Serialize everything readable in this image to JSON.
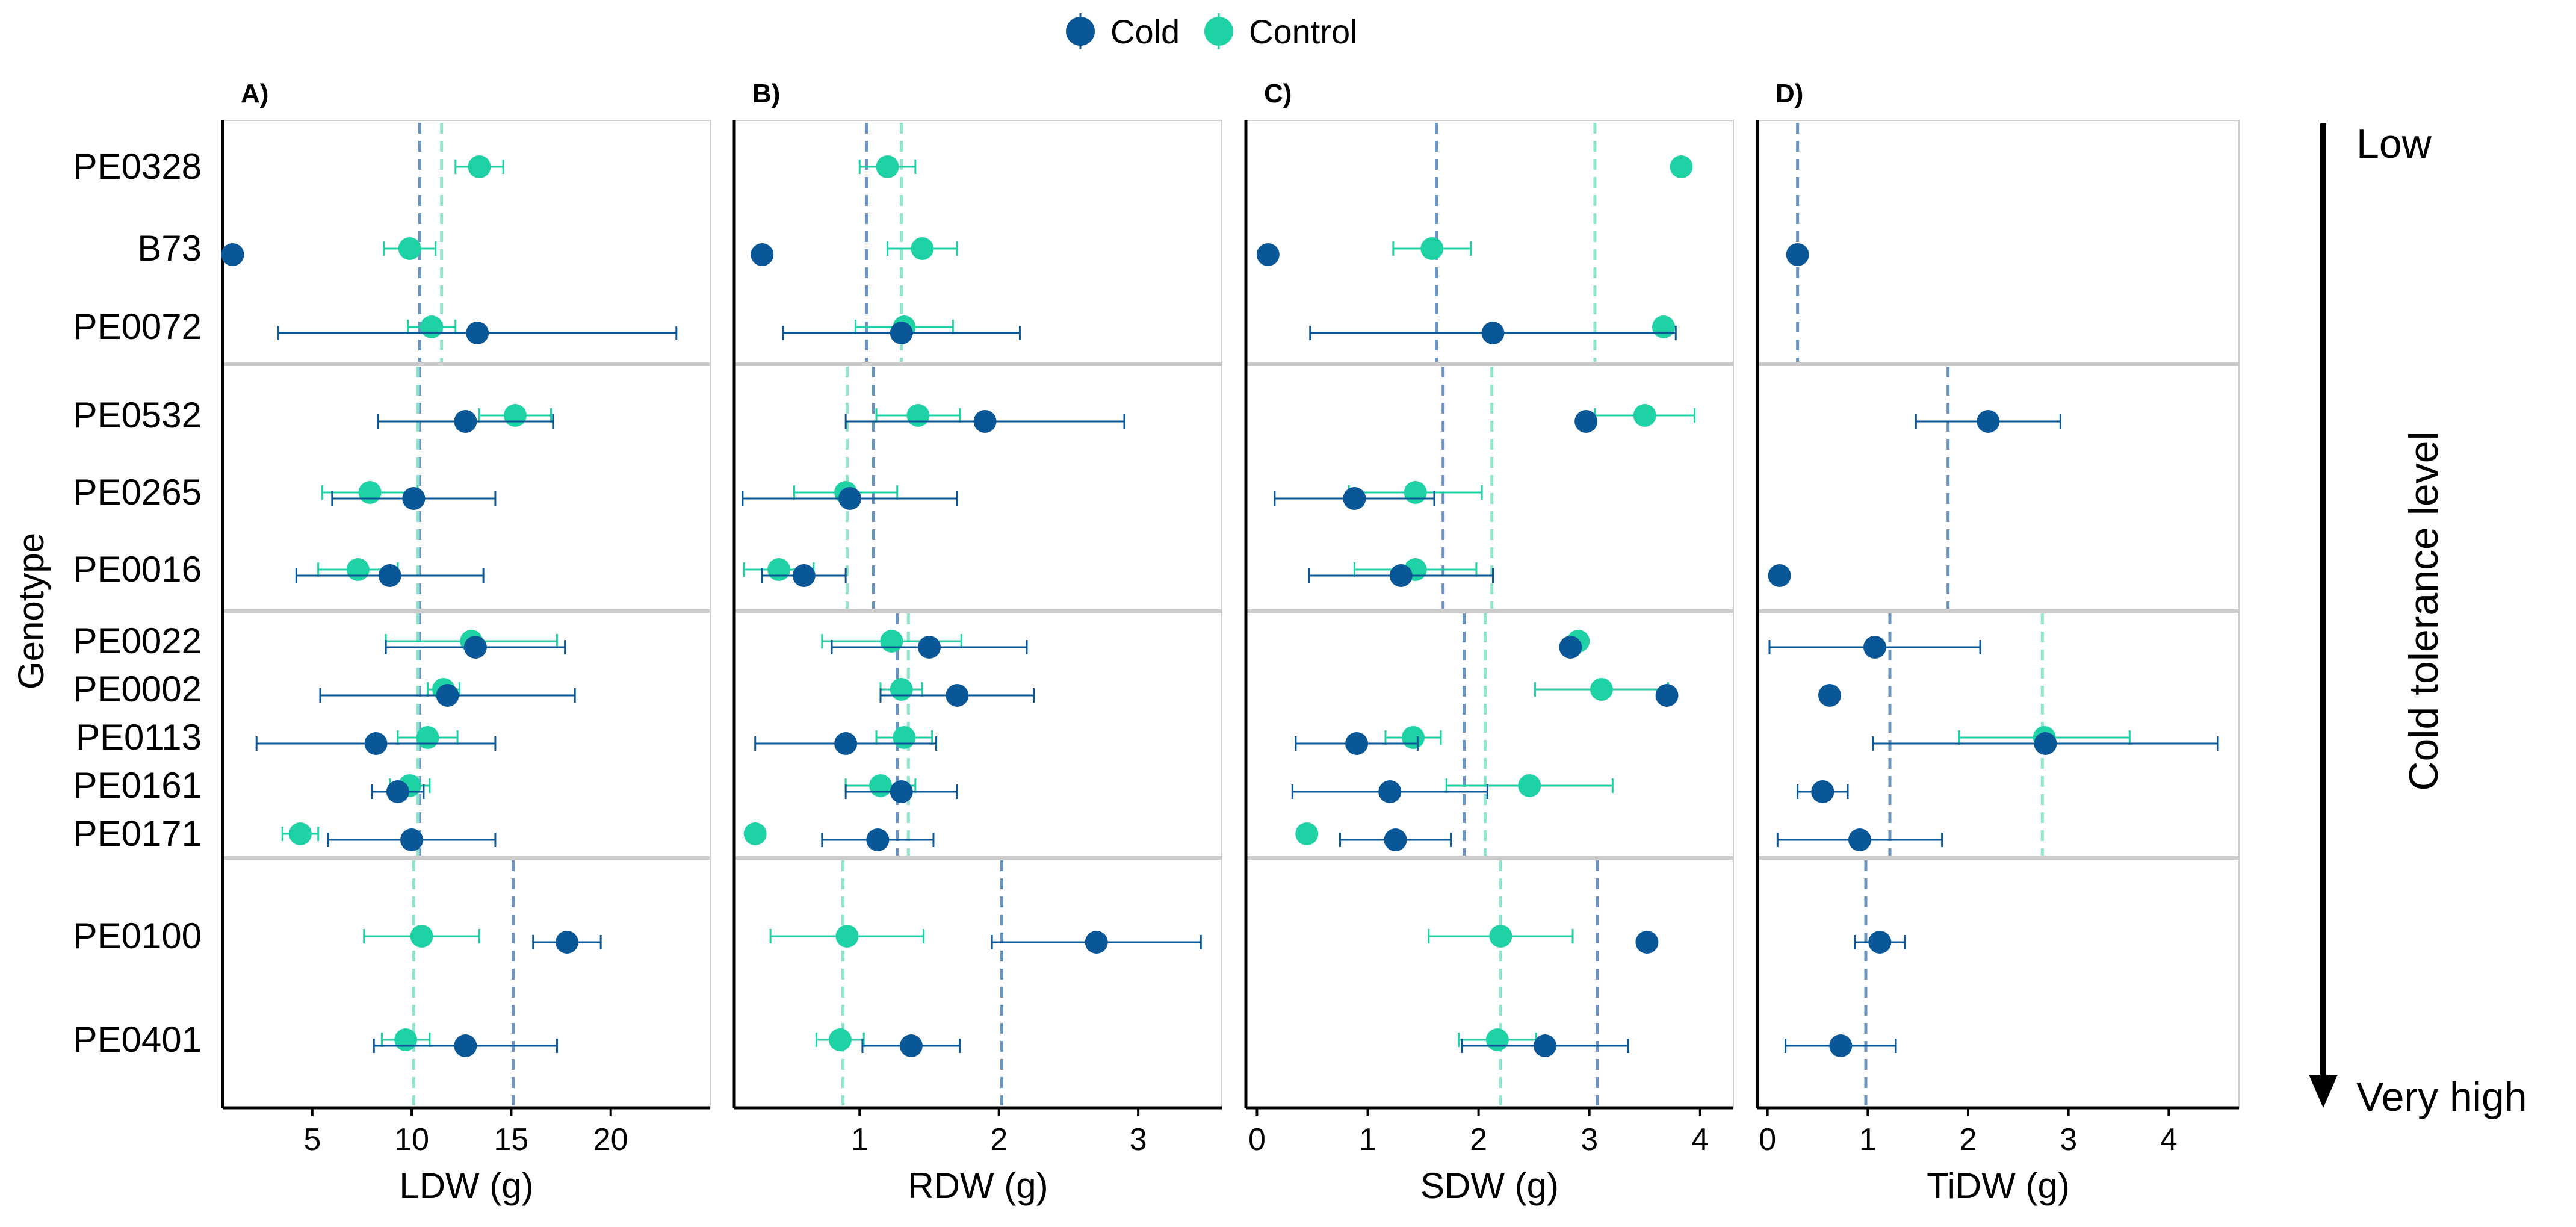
{
  "chart_data": {
    "type": "scatter",
    "title": "",
    "legend": {
      "position": "top",
      "entries": [
        "Cold",
        "Control"
      ]
    },
    "colors": {
      "Cold": "#0a5797",
      "Control": "#1fd2a6",
      "ColdLine": "#6b93c0",
      "ControlLine": "#8fe3cc",
      "grid": "#cccccc",
      "separator": "#cccccc"
    },
    "ylabel": "Genotype",
    "side_label": "Cold tolerance level",
    "side_top": "Low",
    "side_bottom": "Very high",
    "genotypes": [
      {
        "name": "PE0328",
        "group": 1
      },
      {
        "name": "B73",
        "group": 1
      },
      {
        "name": "PE0072",
        "group": 1
      },
      {
        "name": "PE0532",
        "group": 2
      },
      {
        "name": "PE0265",
        "group": 2
      },
      {
        "name": "PE0016",
        "group": 2
      },
      {
        "name": "PE0022",
        "group": 3
      },
      {
        "name": "PE0002",
        "group": 3
      },
      {
        "name": "PE0113",
        "group": 3
      },
      {
        "name": "PE0161",
        "group": 3
      },
      {
        "name": "PE0171",
        "group": 3
      },
      {
        "name": "PE0100",
        "group": 4
      },
      {
        "name": "PE0401",
        "group": 4
      }
    ],
    "panels": [
      {
        "label": "A)",
        "xlabel": "LDW (g)",
        "xlim": [
          0.5,
          25
        ],
        "ticks": [
          5,
          10,
          15,
          20
        ],
        "cold": [
          null,
          1.0,
          13.3,
          12.7,
          10.1,
          8.9,
          13.2,
          11.8,
          8.2,
          9.3,
          10.0,
          17.8,
          12.7
        ],
        "cold_err": [
          null,
          0,
          10.0,
          4.4,
          4.1,
          4.7,
          4.5,
          6.4,
          6.0,
          1.3,
          4.2,
          1.7,
          4.6
        ],
        "control": [
          13.4,
          9.9,
          11.0,
          15.2,
          7.9,
          7.3,
          13.0,
          11.6,
          10.8,
          9.9,
          4.4,
          10.5,
          9.7
        ],
        "control_err": [
          1.2,
          1.3,
          1.2,
          1.8,
          2.4,
          2.0,
          4.3,
          0.8,
          1.5,
          1.0,
          0.9,
          2.9,
          1.2
        ],
        "cold_mean": [
          10.4,
          10.4,
          10.4,
          15.1
        ],
        "control_mean": [
          11.5,
          10.3,
          10.3,
          10.1
        ]
      },
      {
        "label": "B)",
        "xlabel": "RDW (g)",
        "xlim": [
          0.1,
          3.6
        ],
        "ticks": [
          1,
          2,
          3
        ],
        "cold": [
          null,
          0.3,
          1.3,
          1.9,
          0.93,
          0.6,
          1.5,
          1.7,
          0.9,
          1.3,
          1.13,
          2.7,
          1.37
        ],
        "cold_err": [
          null,
          0,
          0.85,
          1.0,
          0.77,
          0.3,
          0.7,
          0.55,
          0.65,
          0.4,
          0.4,
          0.75,
          0.35
        ],
        "control": [
          1.2,
          1.45,
          1.32,
          1.42,
          0.9,
          0.42,
          1.23,
          1.3,
          1.32,
          1.15,
          0.25,
          0.91,
          0.86
        ],
        "control_err": [
          0.2,
          0.25,
          0.35,
          0.3,
          0.37,
          0.25,
          0.5,
          0.15,
          0.2,
          0.25,
          0,
          0.55,
          0.17
        ],
        "cold_mean": [
          1.05,
          1.1,
          1.27,
          2.02
        ],
        "control_mean": [
          1.3,
          0.91,
          1.35,
          0.88
        ]
      },
      {
        "label": "C)",
        "xlabel": "SDW (g)",
        "xlim": [
          -0.1,
          4.3
        ],
        "ticks": [
          0,
          1,
          2,
          3,
          4
        ],
        "cold": [
          null,
          0.1,
          2.13,
          2.97,
          0.88,
          1.3,
          2.83,
          3.7,
          0.9,
          1.2,
          1.25,
          3.52,
          2.6
        ],
        "cold_err": [
          null,
          0,
          1.65,
          0,
          0.72,
          0.83,
          0,
          0,
          0.55,
          0.88,
          0.5,
          0,
          0.75
        ],
        "control": [
          3.83,
          1.58,
          3.67,
          3.5,
          1.43,
          1.43,
          2.9,
          3.11,
          1.41,
          2.46,
          0.45,
          2.2,
          2.17
        ],
        "control_err": [
          0,
          0.35,
          0,
          0.45,
          0.6,
          0.55,
          0,
          0.6,
          0.25,
          0.75,
          0,
          0.65,
          0.35
        ],
        "cold_mean": [
          1.62,
          1.68,
          1.87,
          3.07
        ],
        "control_mean": [
          3.05,
          2.12,
          2.06,
          2.2
        ]
      },
      {
        "label": "D)",
        "xlabel": "TiDW (g)",
        "xlim": [
          -0.1,
          4.7
        ],
        "ticks": [
          0,
          1,
          2,
          3,
          4
        ],
        "cold": [
          null,
          0.3,
          null,
          2.2,
          null,
          0.12,
          1.07,
          0.62,
          2.77,
          0.55,
          0.92,
          1.12,
          0.73
        ],
        "cold_err": [
          null,
          0,
          null,
          0.72,
          null,
          0,
          1.05,
          0,
          1.72,
          0.25,
          0.82,
          0.25,
          0.55
        ],
        "control": [
          null,
          null,
          null,
          null,
          null,
          null,
          null,
          null,
          2.76,
          null,
          null,
          null,
          null
        ],
        "control_err": [
          null,
          null,
          null,
          null,
          null,
          null,
          null,
          null,
          0.85,
          null,
          null,
          null,
          null
        ],
        "cold_mean": [
          0.3,
          1.8,
          1.22,
          0.98
        ],
        "control_mean": [
          null,
          null,
          2.74,
          null
        ]
      }
    ]
  }
}
